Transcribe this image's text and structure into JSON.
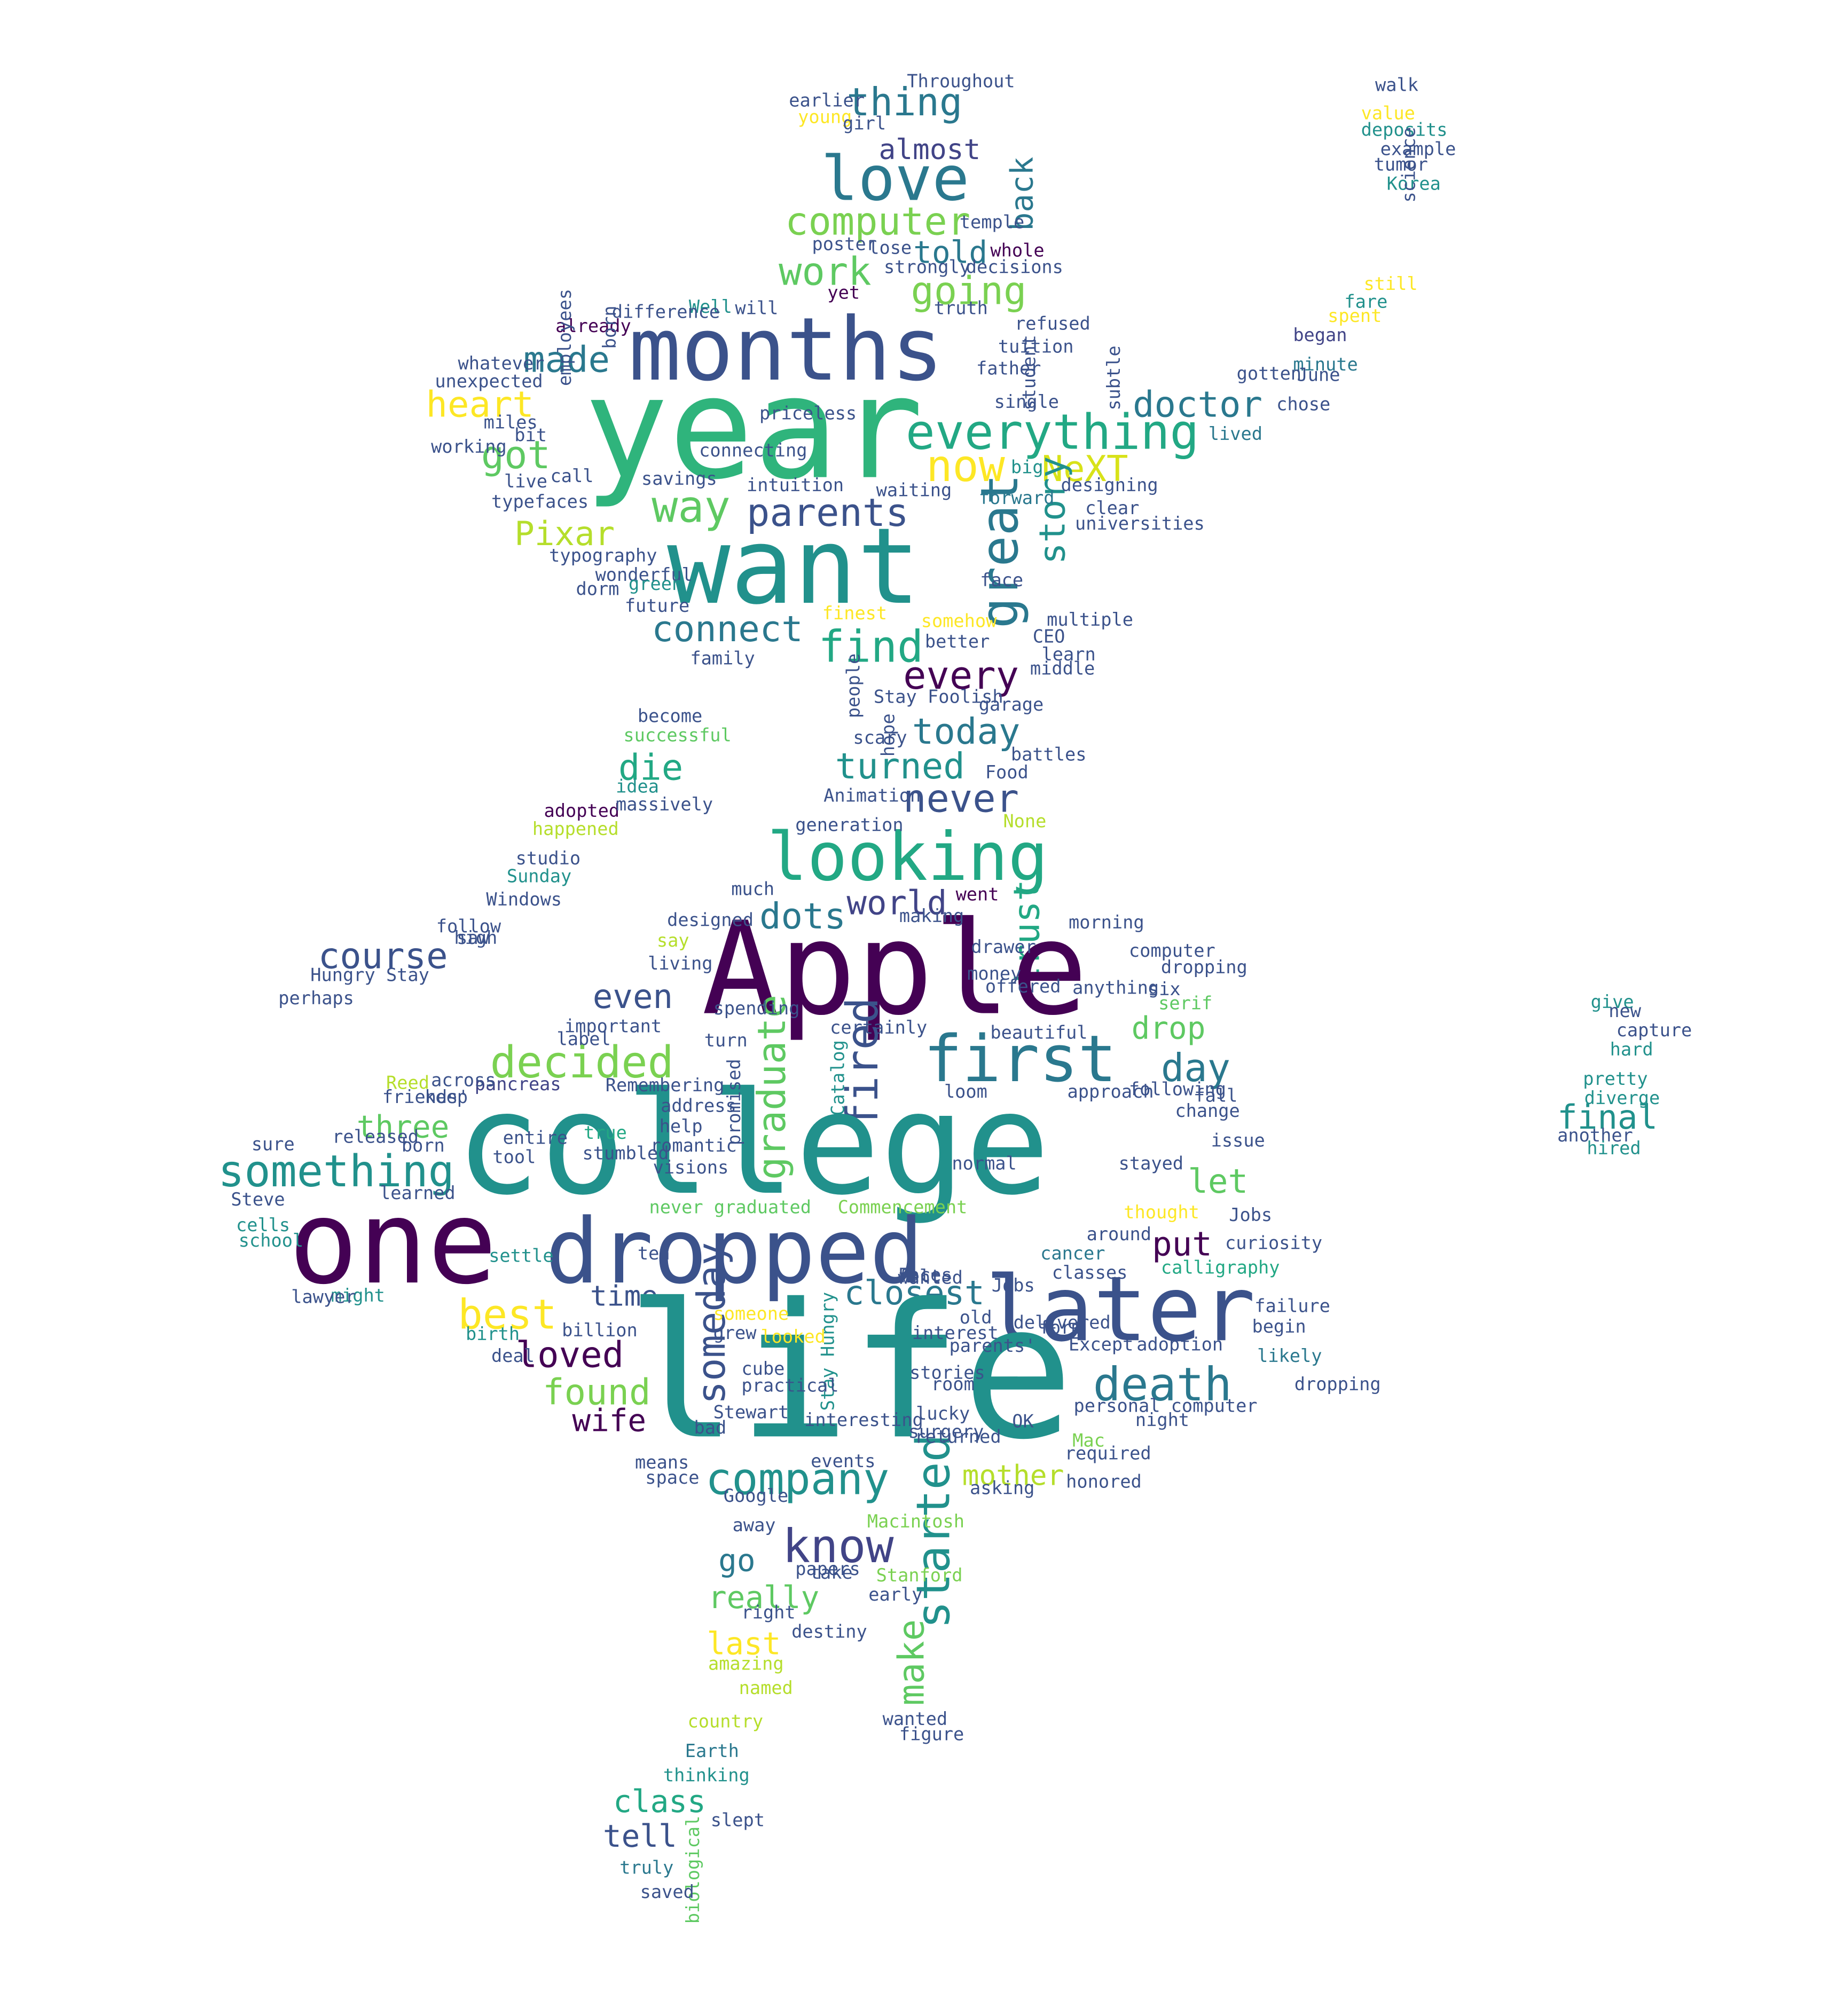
{
  "palette": {
    "dark_purple": "#440154",
    "indigo": "#3b528b",
    "teal": "#21918c",
    "green": "#5ec962",
    "yellow": "#fde725",
    "deep_teal": "#2a788e",
    "mid_green": "#27ad81"
  },
  "words": [
    {
      "text": "year",
      "color": "#2fb47c"
    },
    {
      "text": "want",
      "color": "#21918c"
    },
    {
      "text": "months",
      "color": "#3b528b"
    },
    {
      "text": "love",
      "color": "#2a788e"
    },
    {
      "text": "thing",
      "color": "#2a788e"
    },
    {
      "text": "almost",
      "color": "#414487"
    },
    {
      "text": "computer",
      "color": "#7ad151"
    },
    {
      "text": "told",
      "color": "#2a788e"
    },
    {
      "text": "work",
      "color": "#5ec962"
    },
    {
      "text": "going",
      "color": "#7ad151"
    },
    {
      "text": "back",
      "color": "#2a788e"
    },
    {
      "text": "made",
      "color": "#2a788e"
    },
    {
      "text": "heart",
      "color": "#fde725"
    },
    {
      "text": "got",
      "color": "#5ec962"
    },
    {
      "text": "everything",
      "color": "#22a884"
    },
    {
      "text": "doctor",
      "color": "#2a788e"
    },
    {
      "text": "now",
      "color": "#fde725"
    },
    {
      "text": "NeXT",
      "color": "#d8e219"
    },
    {
      "text": "way",
      "color": "#5ec962"
    },
    {
      "text": "parents",
      "color": "#3b528b"
    },
    {
      "text": "Pixar",
      "color": "#b5de2b"
    },
    {
      "text": "great",
      "color": "#2a788e"
    },
    {
      "text": "story",
      "color": "#21918c"
    },
    {
      "text": "connect",
      "color": "#2a788e"
    },
    {
      "text": "find",
      "color": "#22a884"
    },
    {
      "text": "every",
      "color": "#440154"
    },
    {
      "text": "today",
      "color": "#2a788e"
    },
    {
      "text": "turned",
      "color": "#21918c"
    },
    {
      "text": "die",
      "color": "#22a884"
    },
    {
      "text": "never",
      "color": "#3b528b"
    },
    {
      "text": "looking",
      "color": "#22a884"
    },
    {
      "text": "world",
      "color": "#414487"
    },
    {
      "text": "went",
      "color": "#440154"
    },
    {
      "text": "dots",
      "color": "#2a788e"
    },
    {
      "text": "trust",
      "color": "#22a884"
    },
    {
      "text": "morning",
      "color": "#3b528b"
    },
    {
      "text": "Apple",
      "color": "#440154"
    },
    {
      "text": "course",
      "color": "#3b528b"
    },
    {
      "text": "Hungry Stay",
      "color": "#3b528b"
    },
    {
      "text": "even",
      "color": "#3b528b"
    },
    {
      "text": "important",
      "color": "#3b528b"
    },
    {
      "text": "drop",
      "color": "#5ec962"
    },
    {
      "text": "decided",
      "color": "#7ad151"
    },
    {
      "text": "first",
      "color": "#2a788e"
    },
    {
      "text": "day",
      "color": "#2a788e"
    },
    {
      "text": "graduate",
      "color": "#5ec962"
    },
    {
      "text": "fired",
      "color": "#3b528b"
    },
    {
      "text": "college",
      "color": "#21918c"
    },
    {
      "text": "final",
      "color": "#21918c"
    },
    {
      "text": "three",
      "color": "#5ec962"
    },
    {
      "text": "something",
      "color": "#21918c"
    },
    {
      "text": "let",
      "color": "#5ec962"
    },
    {
      "text": "issue",
      "color": "#3b528b"
    },
    {
      "text": "one",
      "color": "#440154"
    },
    {
      "text": "dropped",
      "color": "#3b528b"
    },
    {
      "text": "put",
      "color": "#440154"
    },
    {
      "text": "calligraphy",
      "color": "#22a884"
    },
    {
      "text": "later",
      "color": "#3b528b"
    },
    {
      "text": "time",
      "color": "#3b528b"
    },
    {
      "text": "closest",
      "color": "#2a788e"
    },
    {
      "text": "best",
      "color": "#fde725"
    },
    {
      "text": "someday",
      "color": "#3b528b"
    },
    {
      "text": "loved",
      "color": "#440154"
    },
    {
      "text": "found",
      "color": "#7ad151"
    },
    {
      "text": "life",
      "color": "#21918c"
    },
    {
      "text": "death",
      "color": "#2a788e"
    },
    {
      "text": "wife",
      "color": "#440154"
    },
    {
      "text": "company",
      "color": "#21918c"
    },
    {
      "text": "started",
      "color": "#21918c"
    },
    {
      "text": "mother",
      "color": "#b5de2b"
    },
    {
      "text": "know",
      "color": "#414487"
    },
    {
      "text": "go",
      "color": "#2a788e"
    },
    {
      "text": "really",
      "color": "#5ec962"
    },
    {
      "text": "make",
      "color": "#5ec962"
    },
    {
      "text": "last",
      "color": "#fde725"
    },
    {
      "text": "class",
      "color": "#22a884"
    },
    {
      "text": "tell",
      "color": "#3b528b"
    },
    {
      "text": "truly",
      "color": "#2a788e"
    },
    {
      "text": "Mac",
      "color": "#7ad151"
    },
    {
      "text": "cancer",
      "color": "#2a788e"
    },
    {
      "text": "pancreas",
      "color": "#414487"
    },
    {
      "text": "sure",
      "color": "#3b528b"
    },
    {
      "text": "become",
      "color": "#3b528b"
    },
    {
      "text": "typography",
      "color": "#3b528b"
    },
    {
      "text": "Stay Foolish",
      "color": "#3b528b"
    },
    {
      "text": "personal computer",
      "color": "#3b528b"
    },
    {
      "text": "single",
      "color": "#3b528b"
    },
    {
      "text": "intuition",
      "color": "#3b528b"
    },
    {
      "text": "typefaces",
      "color": "#3b528b"
    },
    {
      "text": "began",
      "color": "#414487"
    },
    {
      "text": "minute",
      "color": "#2a788e"
    },
    {
      "text": "lived",
      "color": "#2a788e"
    },
    {
      "text": "studio",
      "color": "#3b528b"
    },
    {
      "text": "adopted",
      "color": "#440154"
    },
    {
      "text": "happened",
      "color": "#b5de2b"
    },
    {
      "text": "failure",
      "color": "#3b528b"
    },
    {
      "text": "adoption",
      "color": "#3b528b"
    },
    {
      "text": "begin",
      "color": "#3b528b"
    },
    {
      "text": "likely",
      "color": "#2a788e"
    },
    {
      "text": "classes",
      "color": "#3b528b"
    },
    {
      "text": "thought",
      "color": "#fde725"
    },
    {
      "text": "never graduated",
      "color": "#5ec962"
    },
    {
      "text": "Commencement",
      "color": "#7ad151"
    },
    {
      "text": "wanted",
      "color": "#3b528b"
    },
    {
      "text": "Earth",
      "color": "#2a788e"
    },
    {
      "text": "thinking",
      "color": "#21918c"
    },
    {
      "text": "named",
      "color": "#b5de2b"
    },
    {
      "text": "country",
      "color": "#b5de2b"
    },
    {
      "text": "pretty",
      "color": "#21918c"
    },
    {
      "text": "another",
      "color": "#3b528b"
    },
    {
      "text": "Google",
      "color": "#3b528b"
    },
    {
      "text": "events",
      "color": "#3b528b"
    },
    {
      "text": "means",
      "color": "#3b528b"
    },
    {
      "text": "Catalog",
      "color": "#21918c"
    },
    {
      "text": "Animation",
      "color": "#3b528b"
    },
    {
      "text": "generation",
      "color": "#3b528b"
    },
    {
      "text": "successful",
      "color": "#5ec962"
    },
    {
      "text": "family",
      "color": "#3b528b"
    },
    {
      "text": "wonderful",
      "color": "#3b528b"
    },
    {
      "text": "future",
      "color": "#3b528b"
    },
    {
      "text": "forward",
      "color": "#2a788e"
    },
    {
      "text": "clear",
      "color": "#3b528b"
    },
    {
      "text": "big",
      "color": "#21918c"
    },
    {
      "text": "live",
      "color": "#3b528b"
    },
    {
      "text": "Well",
      "color": "#21918c"
    },
    {
      "text": "will",
      "color": "#3b528b"
    },
    {
      "text": "already",
      "color": "#440154"
    },
    {
      "text": "yet",
      "color": "#440154"
    },
    {
      "text": "young",
      "color": "#fde725"
    },
    {
      "text": "Throughout",
      "color": "#3b528b"
    },
    {
      "text": "earlier",
      "color": "#3b528b"
    },
    {
      "text": "whole",
      "color": "#440154"
    },
    {
      "text": "six",
      "color": "#3b528b"
    },
    {
      "text": "serif",
      "color": "#5ec962"
    },
    {
      "text": "change",
      "color": "#3b528b"
    },
    {
      "text": "keep",
      "color": "#3b528b"
    },
    {
      "text": "Reed",
      "color": "#b5de2b"
    },
    {
      "text": "Remembering",
      "color": "#3b528b"
    },
    {
      "text": "help",
      "color": "#3b528b"
    },
    {
      "text": "true",
      "color": "#22a884"
    },
    {
      "text": "entire",
      "color": "#3b528b"
    },
    {
      "text": "tool",
      "color": "#3b528b"
    },
    {
      "text": "beautiful",
      "color": "#3b528b"
    },
    {
      "text": "turn",
      "color": "#3b528b"
    },
    {
      "text": "much",
      "color": "#3b528b"
    },
    {
      "text": "say",
      "color": "#b5de2b"
    },
    {
      "text": "living",
      "color": "#3b528b"
    },
    {
      "text": "idea",
      "color": "#21918c"
    },
    {
      "text": "follow",
      "color": "#3b528b"
    },
    {
      "text": "cells",
      "color": "#21918c"
    },
    {
      "text": "school",
      "color": "#21918c"
    },
    {
      "text": "might",
      "color": "#21918c"
    },
    {
      "text": "settle",
      "color": "#21918c"
    },
    {
      "text": "ten",
      "color": "#3b528b"
    },
    {
      "text": "old",
      "color": "#3b528b"
    },
    {
      "text": "someone",
      "color": "#fde725"
    },
    {
      "text": "looked",
      "color": "#fde725"
    },
    {
      "text": "stories",
      "color": "#3b528b"
    },
    {
      "text": "room",
      "color": "#3b528b"
    },
    {
      "text": "surgery",
      "color": "#3b528b"
    },
    {
      "text": "night",
      "color": "#3b528b"
    },
    {
      "text": "away",
      "color": "#3b528b"
    },
    {
      "text": "early",
      "color": "#3b528b"
    },
    {
      "text": "right",
      "color": "#3b528b"
    },
    {
      "text": "take",
      "color": "#3b528b"
    },
    {
      "text": "Macintosh",
      "color": "#7ad151"
    },
    {
      "text": "Stanford",
      "color": "#7ad151"
    },
    {
      "text": "amazing",
      "color": "#b5de2b"
    },
    {
      "text": "biological",
      "color": "#5ec962"
    },
    {
      "text": "saved",
      "color": "#3b528b"
    },
    {
      "text": "slept",
      "color": "#3b528b"
    },
    {
      "text": "figure",
      "color": "#3b528b"
    },
    {
      "text": "Jobs",
      "color": "#3b528b"
    },
    {
      "text": "perhaps",
      "color": "#3b528b"
    },
    {
      "text": "Sunday",
      "color": "#21918c"
    },
    {
      "text": "Windows",
      "color": "#3b528b"
    },
    {
      "text": "Stewart",
      "color": "#3b528b"
    },
    {
      "text": "Stay Hungry",
      "color": "#21918c"
    },
    {
      "text": "dorm",
      "color": "#3b528b"
    },
    {
      "text": "green",
      "color": "#21918c"
    },
    {
      "text": "finest",
      "color": "#fde725"
    },
    {
      "text": "somehow",
      "color": "#fde725"
    },
    {
      "text": "better",
      "color": "#3b528b"
    },
    {
      "text": "people",
      "color": "#3b528b"
    },
    {
      "text": "hope",
      "color": "#3b528b"
    },
    {
      "text": "garage",
      "color": "#3b528b"
    },
    {
      "text": "scary",
      "color": "#3b528b"
    },
    {
      "text": "None",
      "color": "#b5de2b"
    },
    {
      "text": "June",
      "color": "#3b528b"
    },
    {
      "text": "chose",
      "color": "#3b528b"
    },
    {
      "text": "gotten",
      "color": "#3b528b"
    },
    {
      "text": "working",
      "color": "#3b528b"
    },
    {
      "text": "unexpected",
      "color": "#3b528b"
    },
    {
      "text": "whatever",
      "color": "#3b528b"
    },
    {
      "text": "miles",
      "color": "#3b528b"
    },
    {
      "text": "bit",
      "color": "#3b528b"
    },
    {
      "text": "employees",
      "color": "#3b528b"
    },
    {
      "text": "born",
      "color": "#3b528b"
    },
    {
      "text": "difference",
      "color": "#3b528b"
    },
    {
      "text": "connecting",
      "color": "#3b528b"
    },
    {
      "text": "priceless",
      "color": "#3b528b"
    },
    {
      "text": "savings",
      "color": "#3b528b"
    },
    {
      "text": "call",
      "color": "#3b528b"
    },
    {
      "text": "waiting",
      "color": "#3b528b"
    },
    {
      "text": "designing",
      "color": "#3b528b"
    },
    {
      "text": "universities",
      "color": "#3b528b"
    },
    {
      "text": "subtle",
      "color": "#3b528b"
    },
    {
      "text": "truth",
      "color": "#3b528b"
    },
    {
      "text": "strongly",
      "color": "#3b528b"
    },
    {
      "text": "decisions",
      "color": "#3b528b"
    },
    {
      "text": "temple",
      "color": "#3b528b"
    },
    {
      "text": "poster",
      "color": "#3b528b"
    },
    {
      "text": "lose",
      "color": "#3b528b"
    },
    {
      "text": "girl",
      "color": "#3b528b"
    },
    {
      "text": "tuition",
      "color": "#3b528b"
    },
    {
      "text": "father",
      "color": "#3b528b"
    },
    {
      "text": "refused",
      "color": "#3b528b"
    },
    {
      "text": "walk",
      "color": "#3b528b"
    },
    {
      "text": "value",
      "color": "#fde725"
    },
    {
      "text": "deposits",
      "color": "#21918c"
    },
    {
      "text": "example",
      "color": "#3b528b"
    },
    {
      "text": "tumor",
      "color": "#3b528b"
    },
    {
      "text": "Korea",
      "color": "#21918c"
    },
    {
      "text": "science",
      "color": "#3b528b"
    },
    {
      "text": "still",
      "color": "#fde725"
    },
    {
      "text": "fare",
      "color": "#21918c"
    },
    {
      "text": "spent",
      "color": "#fde725"
    },
    {
      "text": "give",
      "color": "#21918c"
    },
    {
      "text": "new",
      "color": "#3b528b"
    },
    {
      "text": "capture",
      "color": "#3b528b"
    },
    {
      "text": "hard",
      "color": "#21918c"
    },
    {
      "text": "diverge",
      "color": "#21918c"
    },
    {
      "text": "hired",
      "color": "#21918c"
    },
    {
      "text": "Steve",
      "color": "#3b528b"
    },
    {
      "text": "lawyer",
      "color": "#3b528b"
    },
    {
      "text": "birth",
      "color": "#21918c"
    },
    {
      "text": "billion",
      "color": "#3b528b"
    },
    {
      "text": "deal",
      "color": "#3b528b"
    },
    {
      "text": "grew",
      "color": "#3b528b"
    },
    {
      "text": "cube",
      "color": "#3b528b"
    },
    {
      "text": "practical",
      "color": "#3b528b"
    },
    {
      "text": "bad",
      "color": "#3b528b"
    },
    {
      "text": "interesting",
      "color": "#3b528b"
    },
    {
      "text": "space",
      "color": "#3b528b"
    },
    {
      "text": "papers",
      "color": "#3b528b"
    },
    {
      "text": "destiny",
      "color": "#3b528b"
    },
    {
      "text": "OK",
      "color": "#3b528b"
    },
    {
      "text": "required",
      "color": "#3b528b"
    },
    {
      "text": "dropping",
      "color": "#3b528b"
    },
    {
      "text": "Except",
      "color": "#3b528b"
    },
    {
      "text": "interest",
      "color": "#3b528b"
    },
    {
      "text": "parents'",
      "color": "#3b528b"
    },
    {
      "text": "lucky",
      "color": "#3b528b"
    },
    {
      "text": "asking",
      "color": "#3b528b"
    },
    {
      "text": "honored",
      "color": "#3b528b"
    },
    {
      "text": "fall",
      "color": "#3b528b"
    },
    {
      "text": "loom",
      "color": "#3b528b"
    },
    {
      "text": "approach",
      "color": "#3b528b"
    },
    {
      "text": "following",
      "color": "#3b528b"
    },
    {
      "text": "offered",
      "color": "#3b528b"
    },
    {
      "text": "money",
      "color": "#3b528b"
    },
    {
      "text": "drawer",
      "color": "#3b528b"
    },
    {
      "text": "making",
      "color": "#3b528b"
    },
    {
      "text": "spending",
      "color": "#3b528b"
    },
    {
      "text": "certainly",
      "color": "#3b528b"
    },
    {
      "text": "label",
      "color": "#3b528b"
    },
    {
      "text": "address",
      "color": "#3b528b"
    },
    {
      "text": "promised",
      "color": "#3b528b"
    },
    {
      "text": "romantic",
      "color": "#3b528b"
    },
    {
      "text": "stumbled",
      "color": "#3b528b"
    },
    {
      "text": "visions",
      "color": "#3b528b"
    },
    {
      "text": "normal",
      "color": "#3b528b"
    },
    {
      "text": "stayed",
      "color": "#3b528b"
    },
    {
      "text": "around",
      "color": "#3b528b"
    },
    {
      "text": "curiosity",
      "color": "#3b528b"
    },
    {
      "text": "student",
      "color": "#3b528b"
    },
    {
      "text": "friends'",
      "color": "#3b528b"
    },
    {
      "text": "released",
      "color": "#3b528b"
    },
    {
      "text": "born",
      "color": "#3b528b"
    },
    {
      "text": "across",
      "color": "#3b528b"
    },
    {
      "text": "learned",
      "color": "#3b528b"
    },
    {
      "text": "massively",
      "color": "#3b528b"
    },
    {
      "text": "saw",
      "color": "#3b528b"
    },
    {
      "text": "CEO",
      "color": "#3b528b"
    },
    {
      "text": "learn",
      "color": "#3b528b"
    },
    {
      "text": "face",
      "color": "#3b528b"
    },
    {
      "text": "multiple",
      "color": "#3b528b"
    },
    {
      "text": "middle",
      "color": "#3b528b"
    },
    {
      "text": "Food",
      "color": "#3b528b"
    },
    {
      "text": "battles",
      "color": "#3b528b"
    },
    {
      "text": "Jobs",
      "color": "#3b528b"
    },
    {
      "text": "delivered",
      "color": "#3b528b"
    },
    {
      "text": "form",
      "color": "#3b528b"
    },
    {
      "text": "computer",
      "color": "#3b528b"
    },
    {
      "text": "dropping",
      "color": "#3b528b"
    },
    {
      "text": "anything",
      "color": "#3b528b"
    },
    {
      "text": "high",
      "color": "#3b528b"
    },
    {
      "text": "designed",
      "color": "#3b528b"
    },
    {
      "text": "returned",
      "color": "#3b528b"
    },
    {
      "text": "Faces",
      "color": "#3b528b"
    },
    {
      "text": "felt",
      "color": "#3b528b"
    },
    {
      "text": "wanted",
      "color": "#3b528b"
    }
  ]
}
